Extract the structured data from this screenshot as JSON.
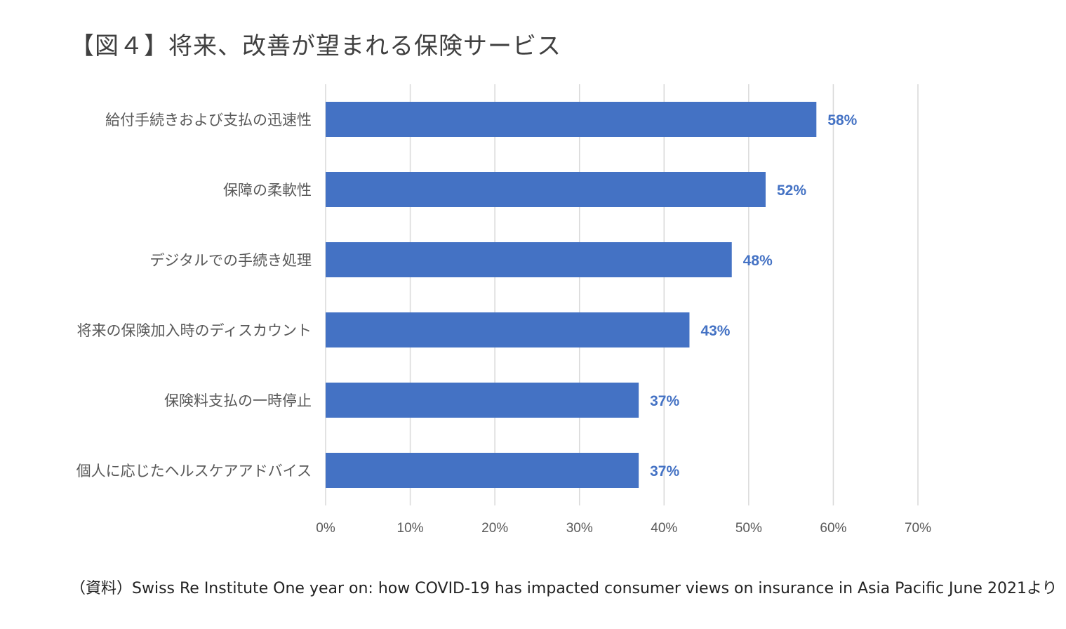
{
  "title": "【図４】将来、改善が望まれる保険サービス",
  "source": "（資料）Swiss Re Institute  One year on: how COVID-19 has impacted consumer views on insurance in Asia Pacific   June 2021より",
  "colors": {
    "bar": "#4472C4",
    "label": "#4472C4",
    "grid": "#D9D9D9",
    "axis_text": "#595959"
  },
  "chart_data": {
    "type": "bar",
    "orientation": "horizontal",
    "title": "【図４】将来、改善が望まれる保険サービス",
    "categories": [
      "給付手続きおよび支払の迅速性",
      "保障の柔軟性",
      "デジタルでの手続き処理",
      "将来の保険加入時のディスカウント",
      "保険料支払の一時停止",
      "個人に応じたヘルスケアアドバイス"
    ],
    "values": [
      58,
      52,
      48,
      43,
      37,
      37
    ],
    "data_labels": [
      "58%",
      "52%",
      "48%",
      "43%",
      "37%",
      "37%"
    ],
    "xlim": [
      0,
      70
    ],
    "x_ticks": [
      0,
      10,
      20,
      30,
      40,
      50,
      60,
      70
    ],
    "x_tick_labels": [
      "0%",
      "10%",
      "20%",
      "30%",
      "40%",
      "50%",
      "60%",
      "70%"
    ],
    "grid": true,
    "legend": "none"
  }
}
